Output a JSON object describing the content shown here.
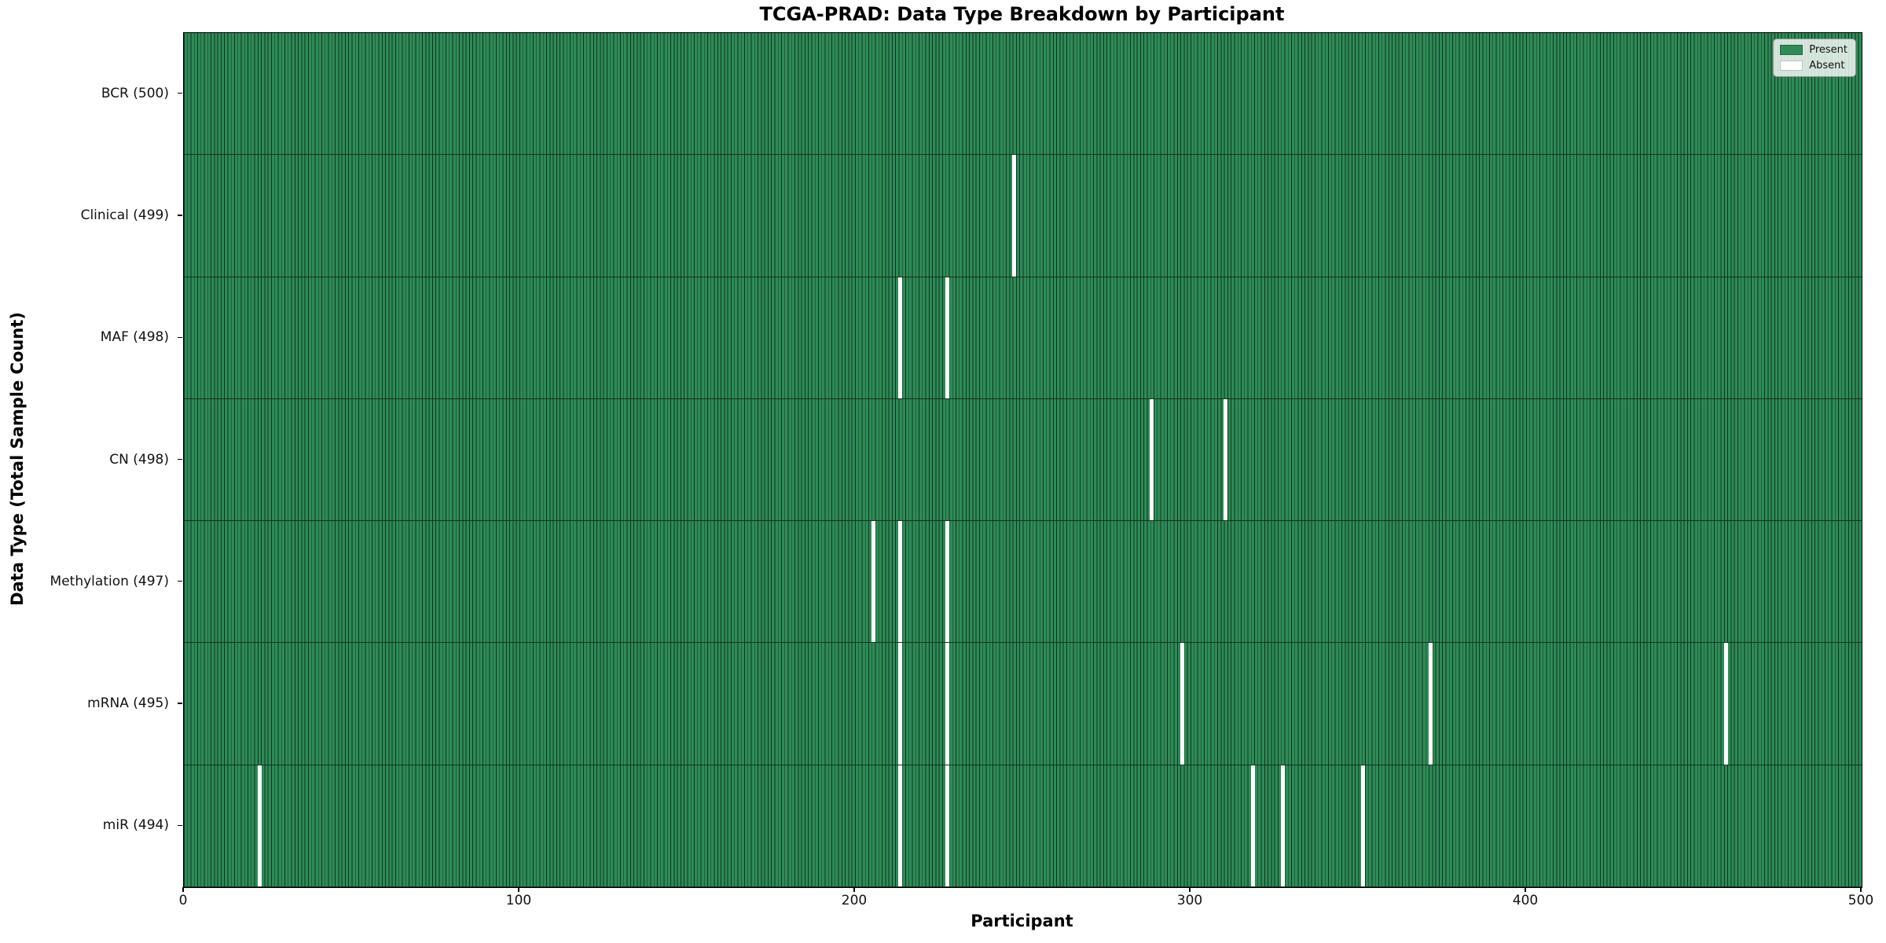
{
  "chart_data": {
    "type": "heatmap",
    "title": "TCGA-PRAD: Data Type Breakdown by Participant",
    "xlabel": "Participant",
    "ylabel": "Data Type (Total Sample Count)",
    "xlim": [
      0,
      500
    ],
    "x_ticks": [
      0,
      100,
      200,
      300,
      400,
      500
    ],
    "n_participants": 500,
    "cell_states": [
      "Present",
      "Absent"
    ],
    "colors": {
      "present": "#2e8b57",
      "absent": "#ffffff",
      "edge": "#15301e"
    },
    "legend": {
      "position": "upper right",
      "entries": [
        {
          "label": "Present",
          "color": "#2e8b57"
        },
        {
          "label": "Absent",
          "color": "#ffffff"
        }
      ]
    },
    "rows": [
      {
        "label": "BCR (500)",
        "name": "BCR",
        "total": 500,
        "absent_participants": []
      },
      {
        "label": "Clinical (499)",
        "name": "Clinical",
        "total": 499,
        "absent_participants": [
          247
        ]
      },
      {
        "label": "MAF (498)",
        "name": "MAF",
        "total": 498,
        "absent_participants": [
          213,
          227
        ]
      },
      {
        "label": "CN (498)",
        "name": "CN",
        "total": 498,
        "absent_participants": [
          288,
          310
        ]
      },
      {
        "label": "Methylation (497)",
        "name": "Methylation",
        "total": 497,
        "absent_participants": [
          205,
          213,
          227
        ]
      },
      {
        "label": "mRNA (495)",
        "name": "mRNA",
        "total": 495,
        "absent_participants": [
          213,
          227,
          297,
          371,
          459
        ]
      },
      {
        "label": "miR (494)",
        "name": "miR",
        "total": 494,
        "absent_participants": [
          22,
          213,
          227,
          318,
          327,
          351
        ]
      }
    ]
  }
}
